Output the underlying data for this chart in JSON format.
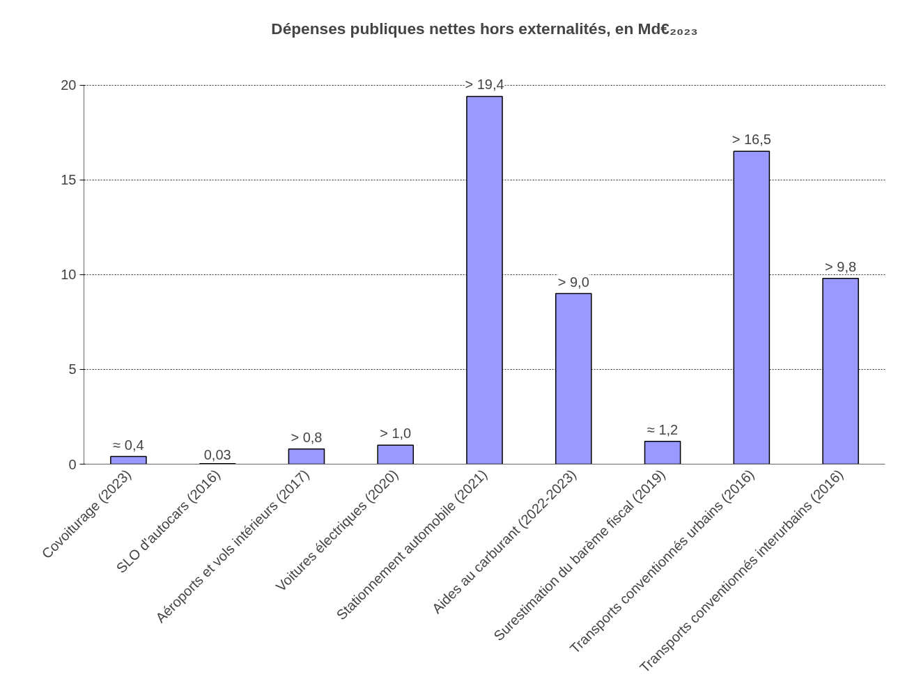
{
  "chart_data": {
    "type": "bar",
    "title": "Dépenses publiques nettes hors externalités, en Md€₂₀₂₃",
    "categories": [
      "Covoiturage (2023)",
      "SLO d'autocars (2016)",
      "Aéroports et vols intérieurs (2017)",
      "Voitures électriques (2020)",
      "Stationnement automobile (2021)",
      "Aides au carburant (2022-2023)",
      "Surestimation du barème fiscal (2019)",
      "Transports conventionnés urbains (2016)",
      "Transports conventionnés interurbains (2016)"
    ],
    "values": [
      0.4,
      0.03,
      0.8,
      1.0,
      19.4,
      9.0,
      1.2,
      16.5,
      9.8
    ],
    "value_labels": [
      "≈ 0,4",
      "0,03",
      "> 0,8",
      "> 1,0",
      "> 19,4",
      "> 9,0",
      "≈ 1,2",
      "> 16,5",
      "> 9,8"
    ],
    "color": "#9999ff",
    "ylim": [
      0,
      20
    ],
    "yticks": [
      0,
      5,
      10,
      15,
      20
    ],
    "grid": "y"
  }
}
